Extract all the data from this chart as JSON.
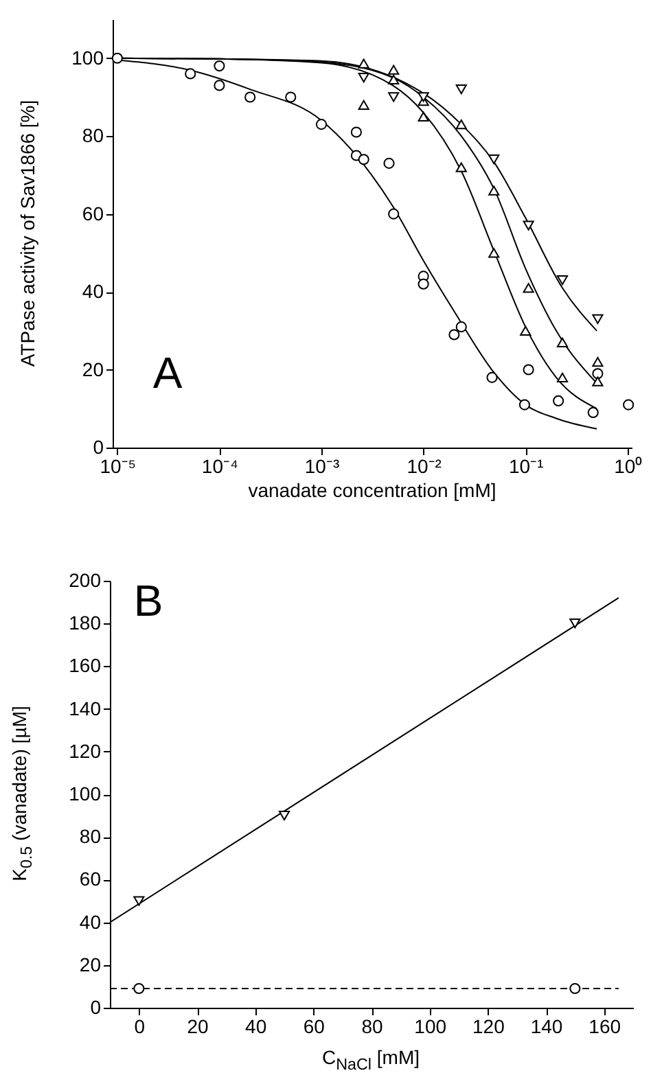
{
  "chart_data": [
    {
      "type": "scatter",
      "xlabel": "vanadate concentration [mM]",
      "ylabel": "ATPase activity of Sav1866 [%]",
      "annotations": [
        "A"
      ],
      "log": "x",
      "xlim": [
        9e-06,
        1.1
      ],
      "xticks": [
        {
          "value": 1e-05,
          "label": "10⁻⁵"
        },
        {
          "value": 0.0001,
          "label": "10⁻⁴"
        },
        {
          "value": 0.001,
          "label": "10⁻³"
        },
        {
          "value": 0.01,
          "label": "10⁻²"
        },
        {
          "value": 0.1,
          "label": "10⁻¹"
        },
        {
          "value": 1,
          "label": "10⁰"
        }
      ],
      "ylim": [
        0,
        110
      ],
      "yticks": [
        0,
        20,
        40,
        60,
        80,
        100
      ],
      "series": [
        {
          "type": "scatter",
          "marker": "circle",
          "color": "#000000",
          "x": [
            1e-05,
            5.2e-05,
            0.0001,
            0.0001,
            0.0002,
            0.0005,
            0.001,
            0.0022,
            0.0022,
            0.0026,
            0.0046,
            0.0051,
            0.01,
            0.01,
            0.02,
            0.0235,
            0.047,
            0.107,
            0.098,
            0.21,
            0.46,
            0.51,
            1.02
          ],
          "values": [
            100,
            96,
            98,
            93,
            90,
            90,
            83,
            81,
            75,
            74,
            73,
            60,
            44,
            42,
            29,
            31,
            18,
            20,
            11,
            12,
            9,
            19,
            11
          ]
        },
        {
          "type": "scatter",
          "marker": "triangle",
          "color": "#000000",
          "x": [
            0.0026,
            0.0051,
            0.01,
            0.0235,
            0.049,
            0.107,
            0.23,
            0.51
          ],
          "values": [
            98.6,
            94.5,
            89,
            83,
            66,
            41,
            27,
            22
          ]
        },
        {
          "type": "scatter",
          "marker": "triangle",
          "color": "#000000",
          "x": [
            0.0026,
            0.0051,
            0.01,
            0.0235,
            0.049,
            0.1,
            0.23,
            0.51
          ],
          "values": [
            88,
            97,
            85,
            72,
            50,
            30,
            18,
            17
          ]
        },
        {
          "type": "scatter",
          "marker": "triangle-down",
          "color": "#000000",
          "x": [
            0.0026,
            0.0051,
            0.01,
            0.0235,
            0.049,
            0.107,
            0.23,
            0.51
          ],
          "values": [
            95,
            90,
            90,
            92,
            74,
            57,
            43,
            33
          ]
        },
        {
          "type": "line",
          "marker": "none",
          "color": "#000000",
          "x": [
            1e-05,
            5e-05,
            0.0002,
            0.001,
            0.0022,
            0.005,
            0.01,
            0.02,
            0.05,
            0.1,
            0.2,
            0.5
          ],
          "values": [
            99.5,
            97,
            92,
            84,
            75,
            62,
            48,
            35,
            19,
            11,
            7.5,
            4.8
          ]
        },
        {
          "type": "line",
          "marker": "none",
          "color": "#000000",
          "x": [
            1e-05,
            0.0001,
            0.001,
            0.005,
            0.01,
            0.0235,
            0.05,
            0.1,
            0.2,
            0.5
          ],
          "values": [
            100,
            99.8,
            99,
            95,
            90,
            80,
            66,
            46,
            30,
            16.5
          ]
        },
        {
          "type": "line",
          "marker": "none",
          "color": "#000000",
          "x": [
            1e-05,
            0.0001,
            0.001,
            0.005,
            0.01,
            0.0235,
            0.05,
            0.1,
            0.2,
            0.5
          ],
          "values": [
            100,
            99.8,
            98.8,
            93,
            86,
            71,
            50,
            31,
            18,
            10
          ]
        },
        {
          "type": "line",
          "marker": "none",
          "color": "#000000",
          "x": [
            1e-05,
            0.0001,
            0.001,
            0.01,
            0.0235,
            0.05,
            0.1,
            0.23,
            0.5
          ],
          "values": [
            100,
            99.8,
            99.3,
            91,
            83,
            73,
            59,
            41,
            30
          ]
        }
      ]
    },
    {
      "type": "scatter",
      "xlabel": "C$_{NaCl}$ [mM]",
      "ylabel": "K$_{0.5}$ (vanadate) [µM]",
      "annotations": [
        "B"
      ],
      "xlim": [
        -10,
        170
      ],
      "xticks": [
        0,
        20,
        40,
        60,
        80,
        100,
        120,
        140,
        160
      ],
      "ylim": [
        0,
        200
      ],
      "yticks": [
        0,
        20,
        40,
        60,
        80,
        100,
        120,
        140,
        160,
        180,
        200
      ],
      "series": [
        {
          "type": "scatter",
          "marker": "triangle-down",
          "color": "#000000",
          "x": [
            0,
            50,
            150
          ],
          "values": [
            50,
            90,
            180
          ]
        },
        {
          "type": "scatter",
          "marker": "circle",
          "color": "#000000",
          "x": [
            0,
            150
          ],
          "values": [
            9,
            9
          ]
        },
        {
          "type": "line",
          "marker": "none",
          "color": "#000000",
          "x": [
            -10,
            165
          ],
          "values": [
            40,
            192
          ]
        },
        {
          "type": "line",
          "marker": "none",
          "line_style": "dashed",
          "color": "#000000",
          "x": [
            -10,
            165
          ],
          "values": [
            9,
            9
          ]
        }
      ]
    }
  ]
}
